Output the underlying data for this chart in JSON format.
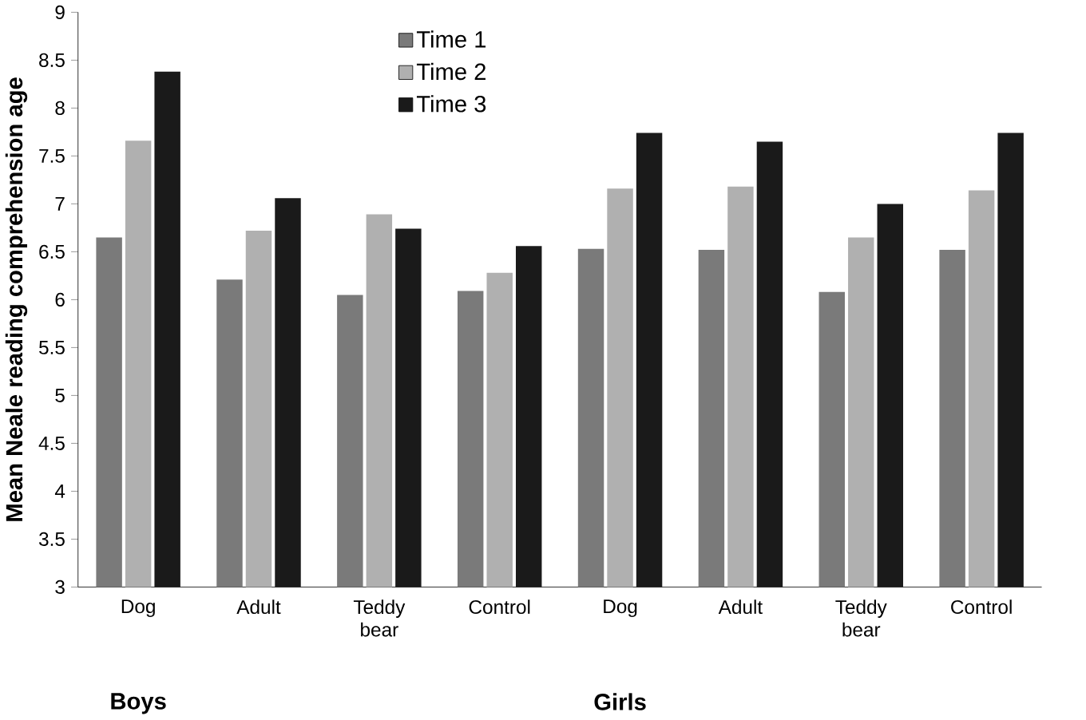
{
  "chart_data": {
    "type": "bar",
    "ylabel": "Mean Neale reading comprehension age",
    "categories": [
      "Dog",
      "Adult",
      "Teddy bear",
      "Control",
      "Dog",
      "Adult",
      "Teddy bear",
      "Control"
    ],
    "series": [
      {
        "name": "Time 1",
        "color": "#7a7a7a",
        "values": [
          6.65,
          6.21,
          6.05,
          6.09,
          6.53,
          6.52,
          6.08,
          6.52
        ]
      },
      {
        "name": "Time 2",
        "color": "#b0b0b0",
        "values": [
          7.66,
          6.72,
          6.89,
          6.28,
          7.16,
          7.18,
          6.65,
          7.14
        ]
      },
      {
        "name": "Time 3",
        "color": "#1a1a1a",
        "values": [
          8.38,
          7.06,
          6.74,
          6.56,
          7.74,
          7.65,
          7.0,
          7.74
        ]
      }
    ],
    "ylim": [
      3,
      9
    ],
    "yticks": [
      3,
      3.5,
      4,
      4.5,
      5,
      5.5,
      6,
      6.5,
      7,
      7.5,
      8,
      8.5,
      9
    ],
    "legend": "top",
    "grid": false,
    "annotations": [
      "Boys",
      "Girls"
    ]
  }
}
